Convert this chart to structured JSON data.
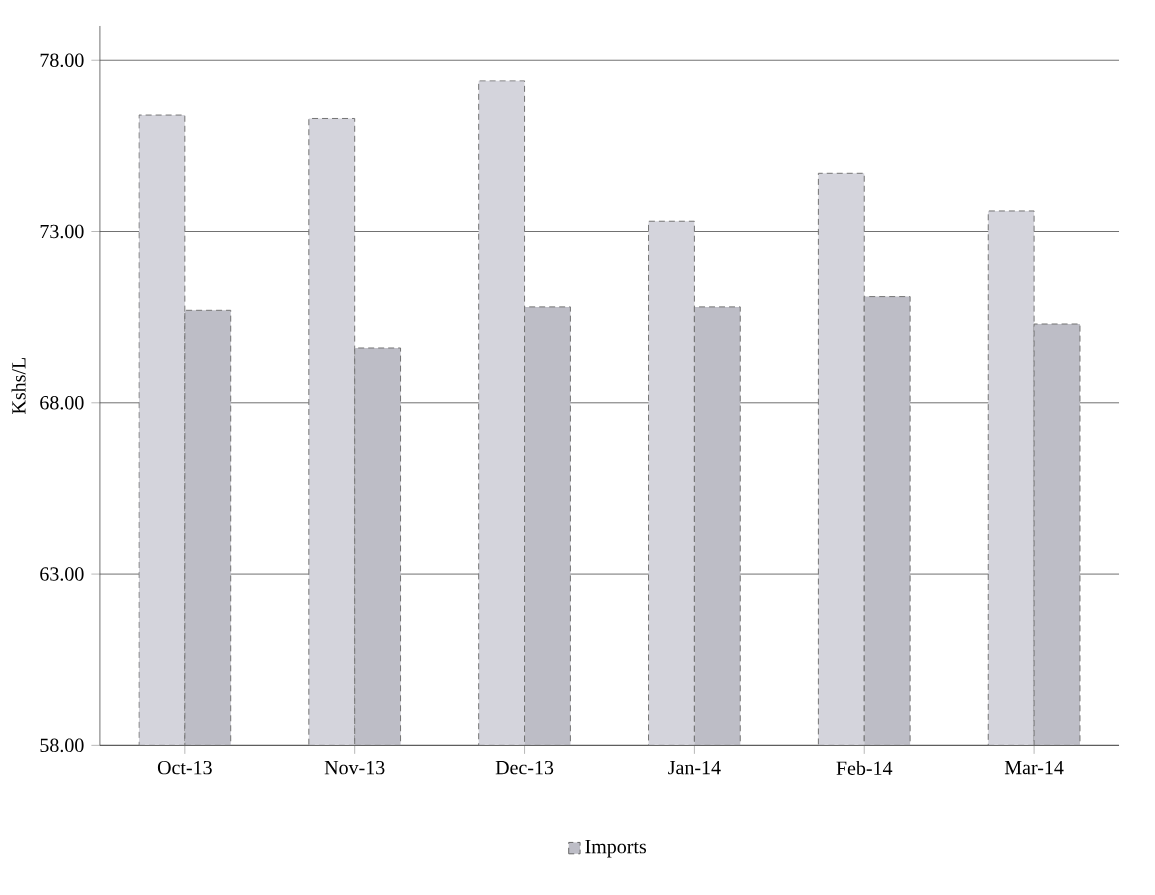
{
  "chart_data": {
    "type": "bar",
    "ylabel": "Kshs/L",
    "categories": [
      "Oct-13",
      "Nov-13",
      "Dec-13",
      "Jan-14",
      "Feb-14",
      "Mar-14"
    ],
    "series": [
      {
        "color": "#d4d4dc",
        "values": [
          76.4,
          76.3,
          77.4,
          73.3,
          74.7,
          73.6
        ]
      },
      {
        "name": "Imports",
        "color": "#bdbdc6",
        "values": [
          70.7,
          69.6,
          70.8,
          70.8,
          71.1,
          70.3
        ]
      }
    ],
    "ylim": [
      58,
      79
    ],
    "yticks": [
      {
        "value": 58,
        "label": "58.00"
      },
      {
        "value": 63,
        "label": "63.00"
      },
      {
        "value": 68,
        "label": "68.00"
      },
      {
        "value": 73,
        "label": "73.00"
      },
      {
        "value": 78,
        "label": "78.00"
      }
    ],
    "grid": "y",
    "legend": "bottom"
  }
}
